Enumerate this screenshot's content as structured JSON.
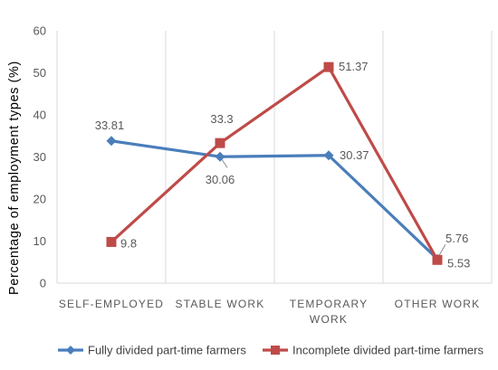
{
  "chart_data": {
    "type": "line",
    "title": "",
    "xlabel": "",
    "ylabel": "Percentage of employment types (%)",
    "ylim": [
      0,
      60
    ],
    "yticks": [
      0,
      10,
      20,
      30,
      40,
      50,
      60
    ],
    "grid": "vertical-category-lines",
    "legend_position": "bottom",
    "categories": [
      [
        "SELF-EMPLOYED"
      ],
      [
        "STABLE WORK"
      ],
      [
        "TEMPORARY",
        "WORK"
      ],
      [
        "OTHER WORK"
      ]
    ],
    "series": [
      {
        "name": "Fully divided part-time farmers",
        "values": [
          33.81,
          30.06,
          30.37,
          5.76
        ],
        "labels": [
          "33.81",
          "30.06",
          "30.37",
          "5.76"
        ],
        "color": "#4a7ebb",
        "marker": "diamond"
      },
      {
        "name": "Incomplete divided part-time farmers",
        "values": [
          9.8,
          33.3,
          51.37,
          5.53
        ],
        "labels": [
          "9.8",
          "33.3",
          "51.37",
          "5.53"
        ],
        "color": "#be4b48",
        "marker": "square"
      }
    ]
  }
}
